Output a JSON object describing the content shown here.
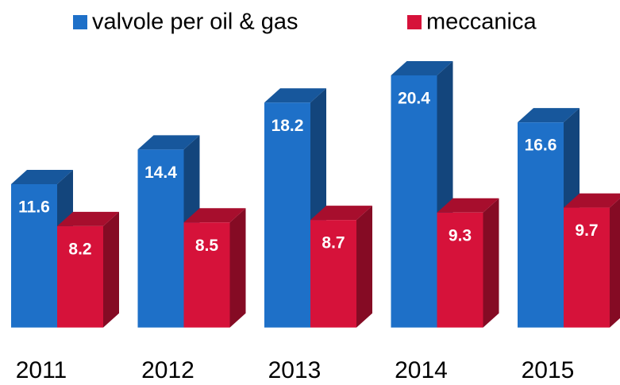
{
  "chart_data": {
    "type": "bar3d",
    "categories": [
      "2011",
      "2012",
      "2013",
      "2014",
      "2015"
    ],
    "series": [
      {
        "name": "valvole per oil & gas",
        "color": "#1e70c8",
        "values": [
          11.6,
          14.4,
          18.2,
          20.4,
          16.6
        ]
      },
      {
        "name": "meccanica",
        "color": "#d6123a",
        "values": [
          8.2,
          8.5,
          8.7,
          9.3,
          9.7
        ]
      }
    ],
    "ylim": [
      0,
      26.5
    ],
    "legend": "top"
  }
}
